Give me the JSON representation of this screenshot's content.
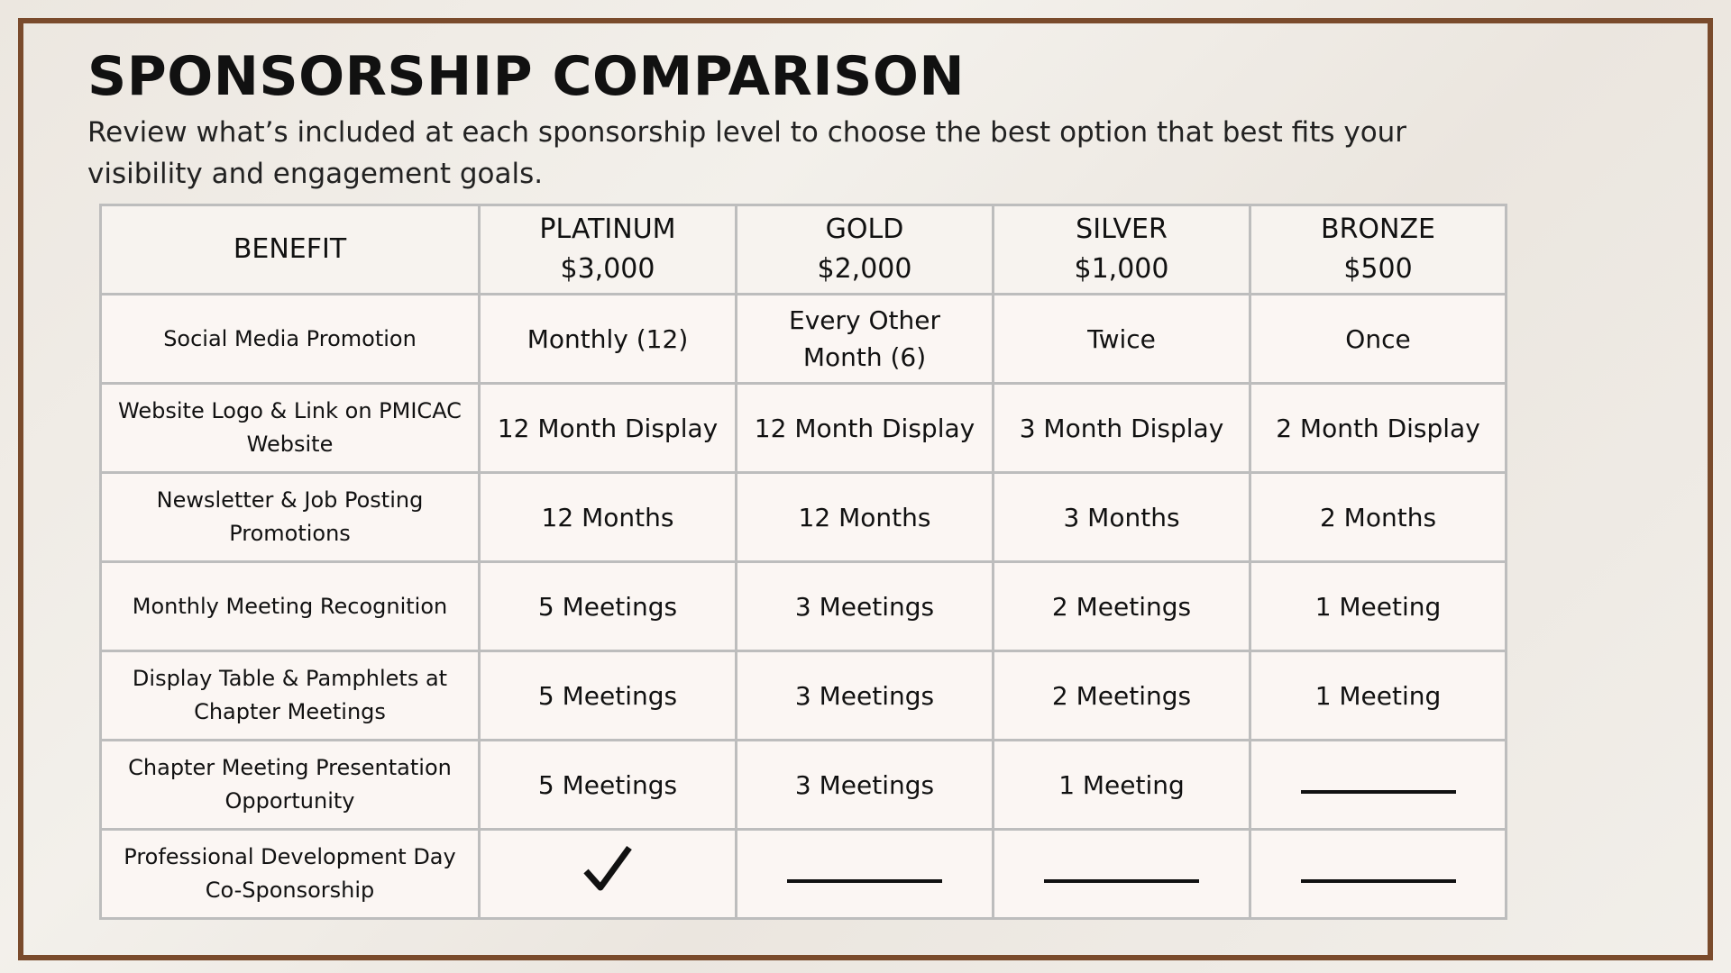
{
  "header": {
    "title": "SPONSORSHIP COMPARISON",
    "subtitle": "Review what’s included at each sponsorship level to choose the best option that best fits your visibility and engagement goals."
  },
  "table": {
    "benefit_header": "BENEFIT",
    "levels": [
      {
        "name": "PLATINUM",
        "price": "$3,000"
      },
      {
        "name": "GOLD",
        "price": "$2,000"
      },
      {
        "name": "SILVER",
        "price": "$1,000"
      },
      {
        "name": "BRONZE",
        "price": "$500"
      }
    ],
    "rows": [
      {
        "benefit": "Social Media Promotion",
        "levels": [
          "Monthly (12)",
          "Every Other Month (6)",
          "Twice",
          "Once"
        ]
      },
      {
        "benefit": "Website Logo & Link on PMICAC Website",
        "levels": [
          "12 Month Display",
          "12 Month Display",
          "3 Month Display",
          "2 Month Display"
        ]
      },
      {
        "benefit": "Newsletter & Job Posting Promotions",
        "levels": [
          "12 Months",
          "12 Months",
          "3 Months",
          "2 Months"
        ]
      },
      {
        "benefit": "Monthly Meeting Recognition",
        "levels": [
          "5 Meetings",
          "3 Meetings",
          "2 Meetings",
          "1 Meeting"
        ]
      },
      {
        "benefit": "Display Table & Pamphlets at Chapter Meetings",
        "levels": [
          "5 Meetings",
          "3 Meetings",
          "2 Meetings",
          "1 Meeting"
        ]
      },
      {
        "benefit": "Chapter Meeting Presentation Opportunity",
        "levels": [
          "5 Meetings",
          "3 Meetings",
          "1 Meeting"
        ]
      },
      {
        "benefit": "Professional Development Day Co-Sponsorship"
      }
    ]
  }
}
